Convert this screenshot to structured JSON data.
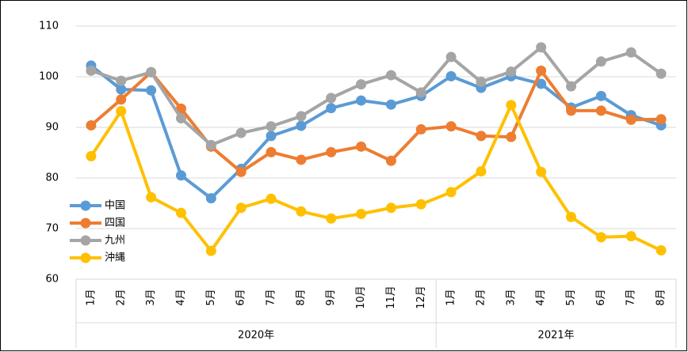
{
  "chart_data": {
    "type": "line",
    "groups": [
      {
        "name": "2020年",
        "categories": [
          "1月",
          "2月",
          "3月",
          "4月",
          "5月",
          "6月",
          "7月",
          "8月",
          "9月",
          "10月",
          "11月",
          "12月"
        ]
      },
      {
        "name": "2021年",
        "categories": [
          "1月",
          "2月",
          "3月",
          "4月",
          "5月",
          "6月",
          "7月",
          "8月"
        ]
      }
    ],
    "series": [
      {
        "name": "中国",
        "color": "#5b9bd5",
        "values": [
          102.2,
          97.5,
          97.3,
          80.5,
          76,
          81.8,
          88.3,
          90.3,
          93.8,
          95.3,
          94.5,
          96.2,
          100.1,
          97.8,
          100.1,
          98.6,
          93.9,
          96.2,
          92.4,
          90.4
        ]
      },
      {
        "name": "四国",
        "color": "#ed7d31",
        "values": [
          90.4,
          95.5,
          100.9,
          93.7,
          86.2,
          81.2,
          85.1,
          83.6,
          85.1,
          86.2,
          83.4,
          89.6,
          90.2,
          88.3,
          88.1,
          101.2,
          93.3,
          93.3,
          91.5,
          91.6
        ]
      },
      {
        "name": "九州",
        "color": "#a5a5a5",
        "values": [
          101.2,
          99.2,
          100.9,
          91.8,
          86.5,
          88.9,
          90.2,
          92.2,
          95.8,
          98.5,
          100.3,
          96.9,
          103.9,
          99,
          101,
          105.8,
          98.1,
          103,
          104.8,
          100.6
        ]
      },
      {
        "name": "沖縄",
        "color": "#ffc000",
        "values": [
          84.3,
          93.2,
          76.2,
          73.1,
          65.6,
          74.1,
          75.9,
          73.4,
          72,
          72.9,
          74.1,
          74.8,
          77.2,
          81.3,
          94.4,
          81.2,
          72.3,
          68.3,
          68.5,
          65.7
        ]
      }
    ],
    "ylim": [
      60,
      110
    ],
    "yticks": [
      60,
      70,
      80,
      90,
      100,
      110
    ],
    "grid": true,
    "legend": "lower left"
  }
}
